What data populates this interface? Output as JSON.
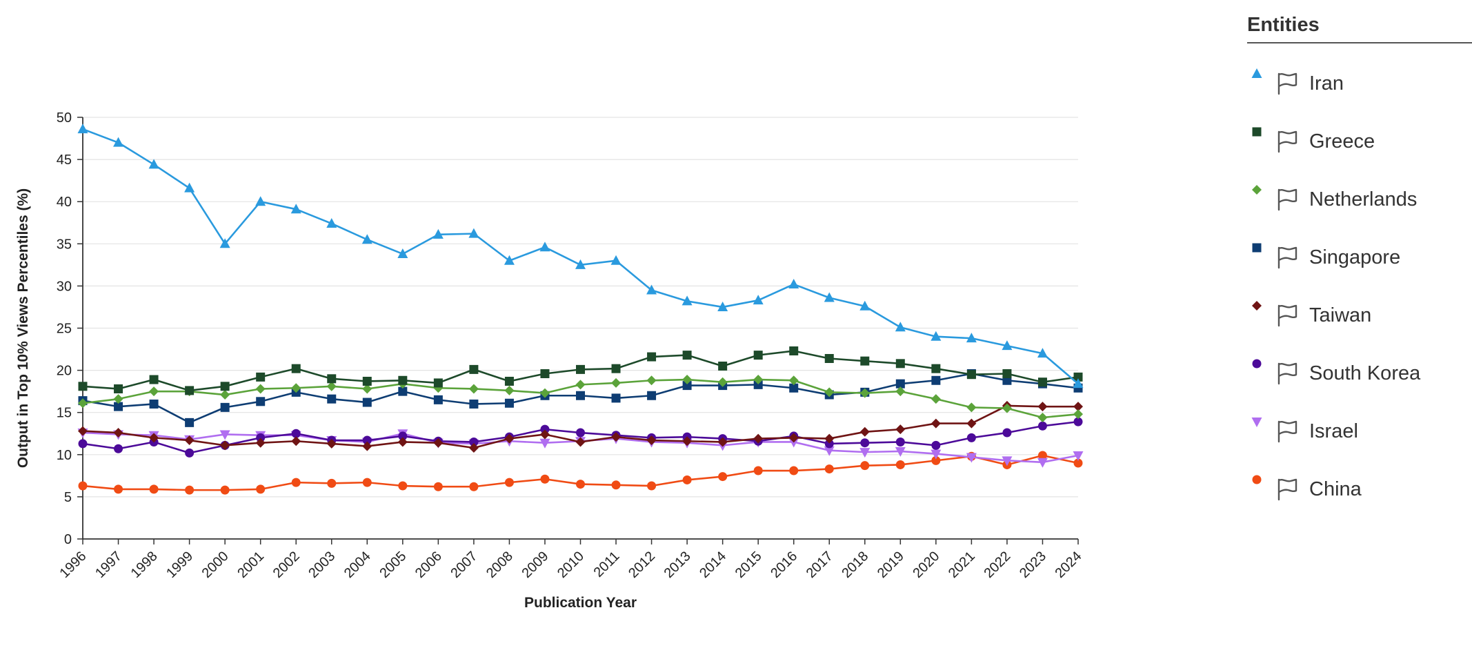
{
  "chart_data": {
    "type": "line",
    "title": "",
    "xlabel": "Publication Year",
    "ylabel": "Output in Top 10% Views Percentiles (%)",
    "ylim": [
      0,
      50
    ],
    "yticks": [
      0,
      5,
      10,
      15,
      20,
      25,
      30,
      35,
      40,
      45,
      50
    ],
    "x": [
      "1996",
      "1997",
      "1998",
      "1999",
      "2000",
      "2001",
      "2002",
      "2003",
      "2004",
      "2005",
      "2006",
      "2007",
      "2008",
      "2009",
      "2010",
      "2011",
      "2012",
      "2013",
      "2014",
      "2015",
      "2016",
      "2017",
      "2018",
      "2019",
      "2020",
      "2021",
      "2022",
      "2023",
      "2024"
    ],
    "series": [
      {
        "name": "Iran",
        "color": "#2a9ade",
        "marker": "triangle",
        "values": [
          48.6,
          47.0,
          44.4,
          41.6,
          35.0,
          40.0,
          39.1,
          37.4,
          35.5,
          33.8,
          36.1,
          36.2,
          33.0,
          34.6,
          32.5,
          33.0,
          29.5,
          28.2,
          27.5,
          28.3,
          30.2,
          28.6,
          27.6,
          25.1,
          24.0,
          23.8,
          22.9,
          22.0,
          18.4
        ]
      },
      {
        "name": "Greece",
        "color": "#1d4a2a",
        "marker": "square",
        "values": [
          18.1,
          17.8,
          18.9,
          17.6,
          18.1,
          19.2,
          20.2,
          19.0,
          18.7,
          18.8,
          18.5,
          20.1,
          18.7,
          19.6,
          20.1,
          20.2,
          21.6,
          21.8,
          20.5,
          21.8,
          22.3,
          21.4,
          21.1,
          20.8,
          20.2,
          19.5,
          19.6,
          18.6,
          19.2
        ]
      },
      {
        "name": "Netherlands",
        "color": "#5ba33a",
        "marker": "diamond",
        "values": [
          16.1,
          16.6,
          17.5,
          17.5,
          17.1,
          17.8,
          17.9,
          18.1,
          17.8,
          18.4,
          17.9,
          17.8,
          17.6,
          17.3,
          18.3,
          18.5,
          18.8,
          18.9,
          18.6,
          18.9,
          18.8,
          17.4,
          17.3,
          17.5,
          16.6,
          15.6,
          15.5,
          14.4,
          14.8
        ]
      },
      {
        "name": "Singapore",
        "color": "#0e3d73",
        "marker": "square",
        "values": [
          16.4,
          15.7,
          16.0,
          13.8,
          15.6,
          16.3,
          17.4,
          16.6,
          16.2,
          17.5,
          16.5,
          16.0,
          16.1,
          17.0,
          17.0,
          16.7,
          17.0,
          18.2,
          18.2,
          18.3,
          17.9,
          17.1,
          17.4,
          18.4,
          18.8,
          19.6,
          18.8,
          18.4,
          17.9
        ]
      },
      {
        "name": "Taiwan",
        "color": "#6f1414",
        "marker": "diamond",
        "values": [
          12.8,
          12.6,
          12.0,
          11.7,
          11.1,
          11.4,
          11.6,
          11.3,
          11.0,
          11.5,
          11.4,
          10.8,
          11.9,
          12.4,
          11.5,
          12.1,
          11.7,
          11.6,
          11.5,
          11.9,
          12.0,
          11.9,
          12.7,
          13.0,
          13.7,
          13.7,
          15.8,
          15.7,
          15.7
        ]
      },
      {
        "name": "South Korea",
        "color": "#4c0a99",
        "marker": "circle",
        "values": [
          11.3,
          10.7,
          11.5,
          10.2,
          11.1,
          12.0,
          12.5,
          11.7,
          11.7,
          12.2,
          11.6,
          11.5,
          12.1,
          13.0,
          12.6,
          12.3,
          12.0,
          12.1,
          11.9,
          11.6,
          12.2,
          11.3,
          11.4,
          11.5,
          11.1,
          12.0,
          12.6,
          13.4,
          13.9
        ]
      },
      {
        "name": "Israel",
        "color": "#b06ef0",
        "marker": "triangle-down",
        "values": [
          12.6,
          12.4,
          12.3,
          11.8,
          12.4,
          12.3,
          12.3,
          11.7,
          11.5,
          12.5,
          11.4,
          11.3,
          11.6,
          11.4,
          11.6,
          11.9,
          11.5,
          11.4,
          11.1,
          11.5,
          11.5,
          10.5,
          10.3,
          10.4,
          10.1,
          9.7,
          9.3,
          9.1,
          9.9
        ]
      },
      {
        "name": "China",
        "color": "#f04b14",
        "marker": "circle",
        "values": [
          6.3,
          5.9,
          5.9,
          5.8,
          5.8,
          5.9,
          6.7,
          6.6,
          6.7,
          6.3,
          6.2,
          6.2,
          6.7,
          7.1,
          6.5,
          6.4,
          6.3,
          7.0,
          7.4,
          8.1,
          8.1,
          8.3,
          8.7,
          8.8,
          9.3,
          9.8,
          8.8,
          9.9,
          9.0
        ]
      }
    ]
  },
  "legend": {
    "title": "Entities",
    "flag_icon": "flag-outline-icon"
  }
}
